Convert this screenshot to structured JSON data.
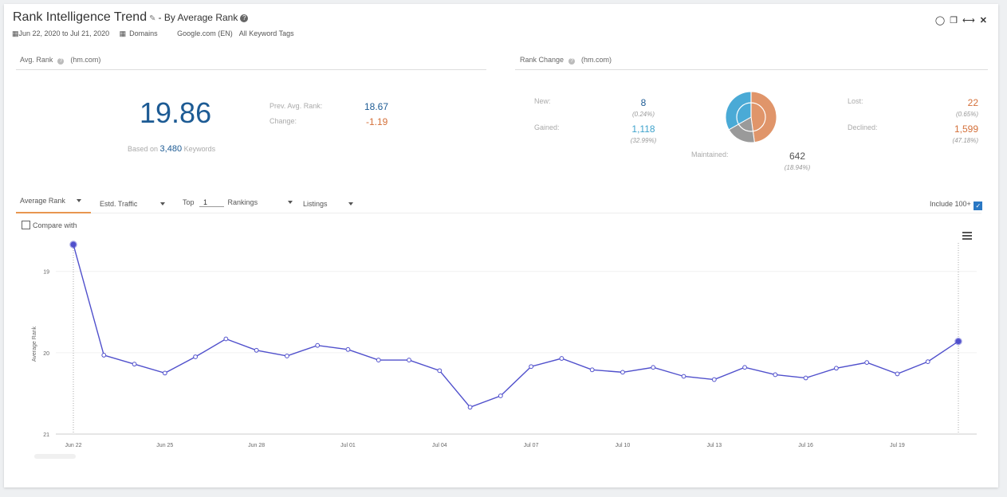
{
  "header": {
    "title": "Rank Intelligence Trend",
    "subtitle": "- By Average Rank",
    "date_range": "Jun 22, 2020 to Jul 21, 2020",
    "domains": "Domains",
    "engine": "Google.com (EN)",
    "tags": "All Keyword Tags"
  },
  "avg_rank": {
    "label": "Avg. Rank",
    "domain": "(hm.com)",
    "value": "19.86",
    "based_on_prefix": "Based on",
    "keywords_count": "3,480",
    "keywords_suffix": "Keywords",
    "prev_label": "Prev. Avg. Rank:",
    "prev_value": "18.67",
    "change_label": "Change:",
    "change_value": "-1.19"
  },
  "rank_change": {
    "label": "Rank Change",
    "domain": "(hm.com)",
    "new_label": "New:",
    "new_value": "8",
    "new_pct": "(0.24%)",
    "gained_label": "Gained:",
    "gained_value": "1,118",
    "gained_pct": "(32.99%)",
    "maintained_label": "Maintained:",
    "maintained_value": "642",
    "maintained_pct": "(18.94%)",
    "lost_label": "Lost:",
    "lost_value": "22",
    "lost_pct": "(0.65%)",
    "declined_label": "Declined:",
    "declined_value": "1,599",
    "declined_pct": "(47.18%)",
    "colors": {
      "gained": "#4aaad6",
      "maintained": "#9a9a9a",
      "declined": "#e0956a"
    }
  },
  "controls": {
    "tab_average_rank": "Average Rank",
    "tab_traffic": "Estd. Traffic",
    "top_label": "Top",
    "top_value": "1",
    "rankings": "Rankings",
    "listings": "Listings",
    "include_100": "Include 100+",
    "compare_with": "Compare with"
  },
  "chart_data": {
    "type": "line",
    "ylabel": "Average Rank",
    "y_ticks": [
      "19",
      "20",
      "21"
    ],
    "ylim": [
      18.65,
      21.0
    ],
    "y_reversed": true,
    "x_tick_labels": [
      "Jun 22",
      "Jun 25",
      "Jun 28",
      "Jul 01",
      "Jul 04",
      "Jul 07",
      "Jul 10",
      "Jul 13",
      "Jul 16",
      "Jul 19"
    ],
    "x": [
      "Jun 22",
      "Jun 23",
      "Jun 24",
      "Jun 25",
      "Jun 26",
      "Jun 27",
      "Jun 28",
      "Jun 29",
      "Jun 30",
      "Jul 01",
      "Jul 02",
      "Jul 03",
      "Jul 04",
      "Jul 05",
      "Jul 06",
      "Jul 07",
      "Jul 08",
      "Jul 09",
      "Jul 10",
      "Jul 11",
      "Jul 12",
      "Jul 13",
      "Jul 14",
      "Jul 15",
      "Jul 16",
      "Jul 17",
      "Jul 18",
      "Jul 19",
      "Jul 20",
      "Jul 21"
    ],
    "series": [
      {
        "color": "#5050cc",
        "values": [
          18.67,
          20.03,
          20.14,
          20.25,
          20.05,
          19.83,
          19.97,
          20.04,
          19.91,
          19.96,
          20.09,
          20.09,
          20.22,
          20.67,
          20.53,
          20.17,
          20.07,
          20.21,
          20.24,
          20.18,
          20.29,
          20.33,
          20.18,
          20.27,
          20.31,
          20.19,
          20.12,
          20.26,
          20.11,
          19.86
        ]
      }
    ],
    "grid": true,
    "legend": "none"
  }
}
